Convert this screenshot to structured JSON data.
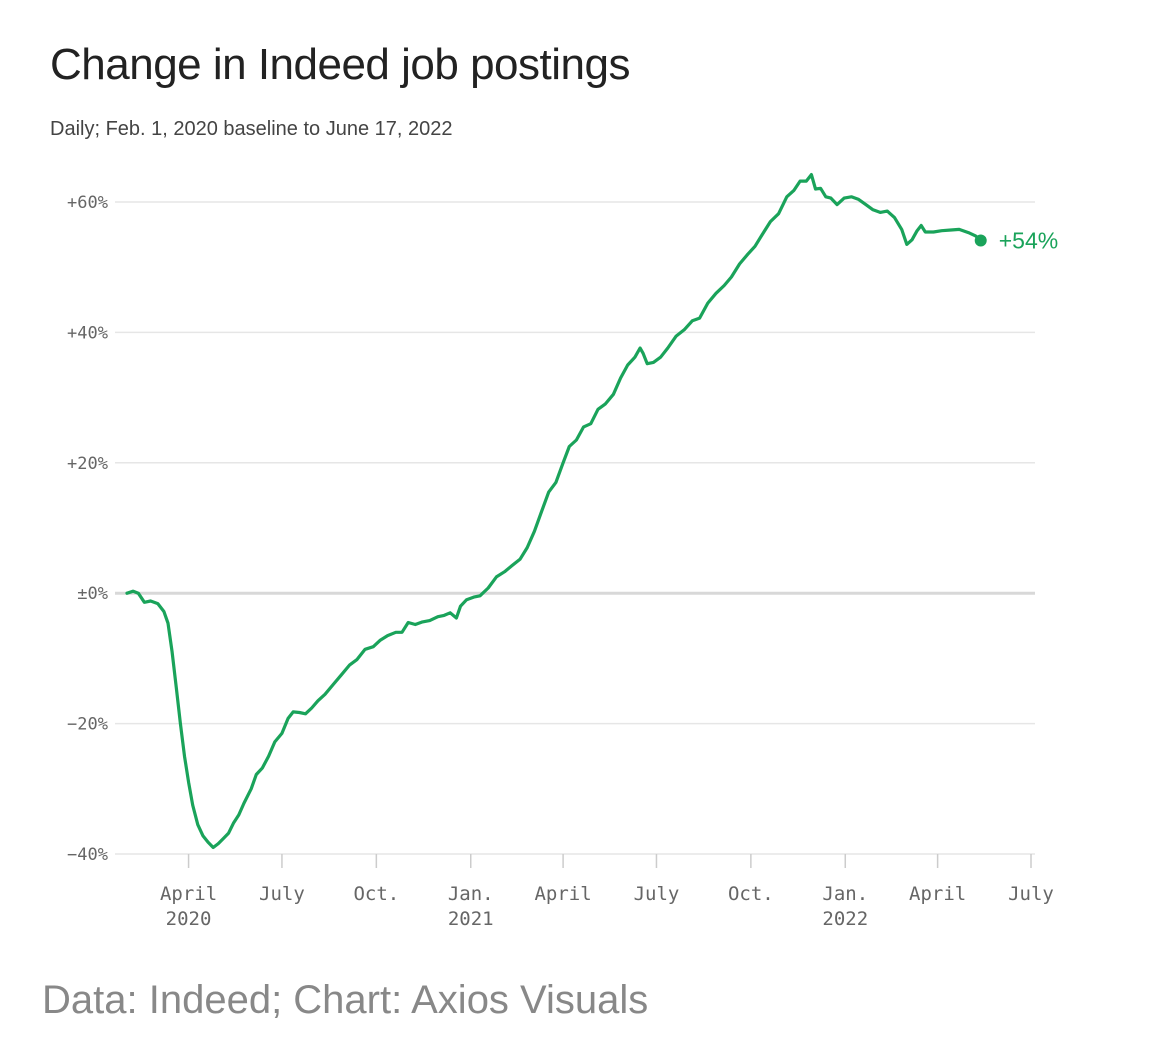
{
  "title": "Change in Indeed job postings",
  "subtitle": "Daily; Feb. 1, 2020 baseline to June 17, 2022",
  "source": "Data: Indeed; Chart: Axios Visuals",
  "colors": {
    "line": "#1aa35a",
    "grid": "#e6e6e6",
    "zero": "#d8d8d8",
    "text": "#666666"
  },
  "chart_data": {
    "type": "line",
    "title": "Change in Indeed job postings",
    "subtitle": "Daily; Feb. 1, 2020 baseline to June 17, 2022",
    "ylim": [
      -40,
      60
    ],
    "yticks": [
      {
        "value": 60,
        "label": "+60%"
      },
      {
        "value": 40,
        "label": "+40%"
      },
      {
        "value": 20,
        "label": "+20%"
      },
      {
        "value": 0,
        "label": "±0%"
      },
      {
        "value": -20,
        "label": "−20%"
      },
      {
        "value": -40,
        "label": "−40%"
      }
    ],
    "xlim": [
      "2020-02-01",
      "2022-07-01"
    ],
    "xticks": [
      {
        "date": "2020-04-01",
        "label": "April",
        "year": "2020"
      },
      {
        "date": "2020-07-01",
        "label": "July",
        "year": ""
      },
      {
        "date": "2020-10-01",
        "label": "Oct.",
        "year": ""
      },
      {
        "date": "2021-01-01",
        "label": "Jan.",
        "year": "2021"
      },
      {
        "date": "2021-04-01",
        "label": "April",
        "year": ""
      },
      {
        "date": "2021-07-01",
        "label": "July",
        "year": ""
      },
      {
        "date": "2021-10-01",
        "label": "Oct.",
        "year": ""
      },
      {
        "date": "2022-01-01",
        "label": "Jan.",
        "year": "2022"
      },
      {
        "date": "2022-04-01",
        "label": "April",
        "year": ""
      },
      {
        "date": "2022-07-01",
        "label": "July",
        "year": ""
      }
    ],
    "grid": true,
    "end_label": "+54%",
    "series": [
      {
        "points": [
          [
            "2020-02-01",
            0
          ],
          [
            "2020-02-07",
            0.3
          ],
          [
            "2020-02-12",
            0
          ],
          [
            "2020-02-18",
            -1.4
          ],
          [
            "2020-02-24",
            -1.2
          ],
          [
            "2020-03-02",
            -1.6
          ],
          [
            "2020-03-08",
            -2.8
          ],
          [
            "2020-03-12",
            -4.6
          ],
          [
            "2020-03-16",
            -9
          ],
          [
            "2020-03-20",
            -14.5
          ],
          [
            "2020-03-24",
            -20
          ],
          [
            "2020-03-28",
            -25
          ],
          [
            "2020-04-01",
            -29
          ],
          [
            "2020-04-05",
            -32.5
          ],
          [
            "2020-04-10",
            -35.5
          ],
          [
            "2020-04-15",
            -37.2
          ],
          [
            "2020-04-20",
            -38.2
          ],
          [
            "2020-04-25",
            -39
          ],
          [
            "2020-04-30",
            -38.4
          ],
          [
            "2020-05-05",
            -37.6
          ],
          [
            "2020-05-10",
            -36.8
          ],
          [
            "2020-05-15",
            -35.2
          ],
          [
            "2020-05-20",
            -34
          ],
          [
            "2020-05-25",
            -32.2
          ],
          [
            "2020-06-01",
            -30
          ],
          [
            "2020-06-06",
            -27.8
          ],
          [
            "2020-06-12",
            -26.8
          ],
          [
            "2020-06-18",
            -25
          ],
          [
            "2020-06-24",
            -22.8
          ],
          [
            "2020-07-01",
            -21.5
          ],
          [
            "2020-07-07",
            -19.2
          ],
          [
            "2020-07-12",
            -18.2
          ],
          [
            "2020-07-18",
            -18.3
          ],
          [
            "2020-07-24",
            -18.5
          ],
          [
            "2020-07-30",
            -17.6
          ],
          [
            "2020-08-05",
            -16.5
          ],
          [
            "2020-08-12",
            -15.5
          ],
          [
            "2020-08-20",
            -14
          ],
          [
            "2020-08-28",
            -12.5
          ],
          [
            "2020-09-05",
            -11
          ],
          [
            "2020-09-12",
            -10.2
          ],
          [
            "2020-09-20",
            -8.6
          ],
          [
            "2020-09-28",
            -8.2
          ],
          [
            "2020-10-05",
            -7.2
          ],
          [
            "2020-10-12",
            -6.5
          ],
          [
            "2020-10-20",
            -6
          ],
          [
            "2020-10-26",
            -6
          ],
          [
            "2020-11-01",
            -4.5
          ],
          [
            "2020-11-08",
            -4.8
          ],
          [
            "2020-11-15",
            -4.4
          ],
          [
            "2020-11-22",
            -4.2
          ],
          [
            "2020-11-30",
            -3.6
          ],
          [
            "2020-12-06",
            -3.4
          ],
          [
            "2020-12-12",
            -3.0
          ],
          [
            "2020-12-18",
            -3.8
          ],
          [
            "2020-12-22",
            -2
          ],
          [
            "2020-12-28",
            -1
          ],
          [
            "2021-01-04",
            -0.6
          ],
          [
            "2021-01-10",
            -0.4
          ],
          [
            "2021-01-18",
            0.8
          ],
          [
            "2021-01-26",
            2.5
          ],
          [
            "2021-02-03",
            3.3
          ],
          [
            "2021-02-10",
            4.2
          ],
          [
            "2021-02-18",
            5.2
          ],
          [
            "2021-02-25",
            7
          ],
          [
            "2021-03-04",
            9.5
          ],
          [
            "2021-03-11",
            12.5
          ],
          [
            "2021-03-18",
            15.5
          ],
          [
            "2021-03-25",
            17
          ],
          [
            "2021-04-01",
            20
          ],
          [
            "2021-04-07",
            22.5
          ],
          [
            "2021-04-14",
            23.5
          ],
          [
            "2021-04-21",
            25.5
          ],
          [
            "2021-04-28",
            26
          ],
          [
            "2021-05-05",
            28.2
          ],
          [
            "2021-05-12",
            29
          ],
          [
            "2021-05-20",
            30.5
          ],
          [
            "2021-05-27",
            33
          ],
          [
            "2021-06-03",
            35
          ],
          [
            "2021-06-10",
            36.2
          ],
          [
            "2021-06-15",
            37.6
          ],
          [
            "2021-06-18",
            36.8
          ],
          [
            "2021-06-22",
            35.2
          ],
          [
            "2021-06-28",
            35.4
          ],
          [
            "2021-07-05",
            36.2
          ],
          [
            "2021-07-12",
            37.6
          ],
          [
            "2021-07-20",
            39.4
          ],
          [
            "2021-07-28",
            40.4
          ],
          [
            "2021-08-05",
            41.8
          ],
          [
            "2021-08-12",
            42.2
          ],
          [
            "2021-08-20",
            44.5
          ],
          [
            "2021-08-28",
            46
          ],
          [
            "2021-09-05",
            47.2
          ],
          [
            "2021-09-12",
            48.5
          ],
          [
            "2021-09-20",
            50.5
          ],
          [
            "2021-09-28",
            52
          ],
          [
            "2021-10-05",
            53.2
          ],
          [
            "2021-10-12",
            55
          ],
          [
            "2021-10-20",
            57
          ],
          [
            "2021-10-28",
            58.2
          ],
          [
            "2021-11-05",
            60.8
          ],
          [
            "2021-11-12",
            61.8
          ],
          [
            "2021-11-18",
            63.2
          ],
          [
            "2021-11-24",
            63.2
          ],
          [
            "2021-11-29",
            64.2
          ],
          [
            "2021-12-03",
            62
          ],
          [
            "2021-12-08",
            62.1
          ],
          [
            "2021-12-13",
            60.8
          ],
          [
            "2021-12-18",
            60.6
          ],
          [
            "2021-12-24",
            59.6
          ],
          [
            "2021-12-31",
            60.6
          ],
          [
            "2022-01-07",
            60.8
          ],
          [
            "2022-01-14",
            60.4
          ],
          [
            "2022-01-21",
            59.6
          ],
          [
            "2022-01-28",
            58.8
          ],
          [
            "2022-02-04",
            58.4
          ],
          [
            "2022-02-11",
            58.6
          ],
          [
            "2022-02-18",
            57.6
          ],
          [
            "2022-02-25",
            55.8
          ],
          [
            "2022-03-02",
            53.5
          ],
          [
            "2022-03-07",
            54.2
          ],
          [
            "2022-03-12",
            55.6
          ],
          [
            "2022-03-16",
            56.4
          ],
          [
            "2022-03-20",
            55.4
          ],
          [
            "2022-03-28",
            55.4
          ],
          [
            "2022-04-05",
            55.6
          ],
          [
            "2022-04-14",
            55.7
          ],
          [
            "2022-04-22",
            55.8
          ],
          [
            "2022-05-01",
            55.3
          ],
          [
            "2022-05-08",
            54.8
          ],
          [
            "2022-05-13",
            54.1
          ]
        ]
      }
    ]
  }
}
